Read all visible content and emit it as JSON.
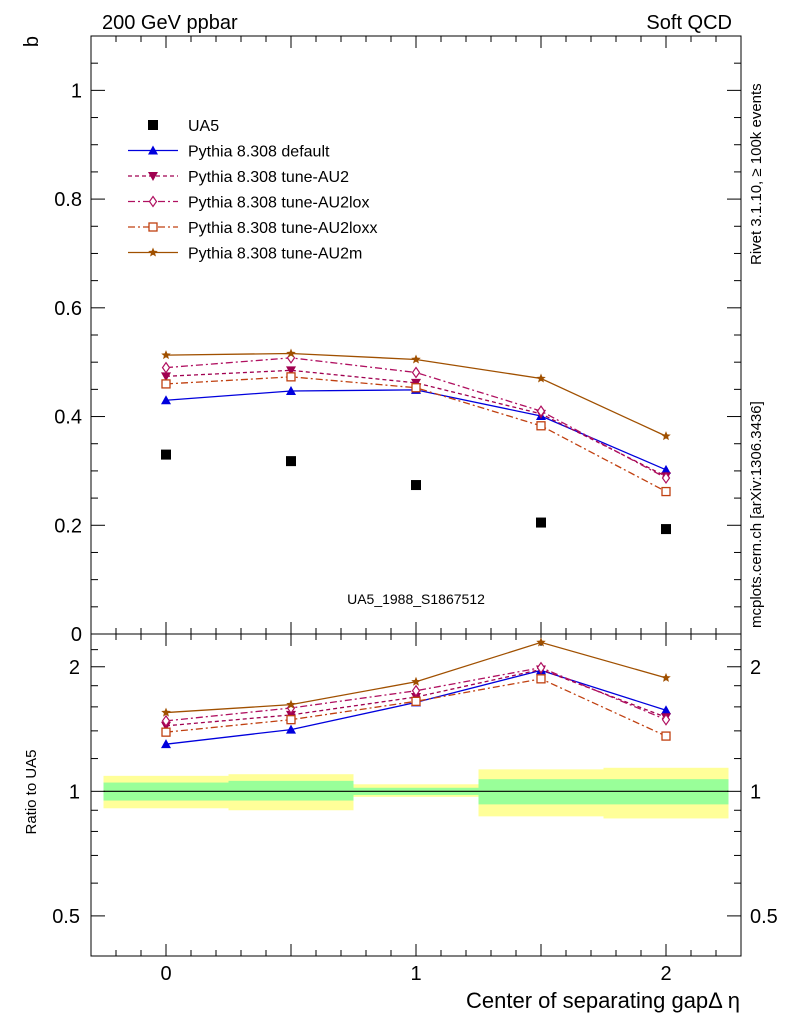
{
  "header": {
    "left": "200 GeV ppbar",
    "right": "Soft QCD"
  },
  "side_labels": {
    "rivet": "Rivet 3.1.10, ≥ 100k events",
    "mcplots": "mcplots.cern.ch [arXiv:1306.3436]"
  },
  "watermark": "UA5_1988_S1867512",
  "chart_data": [
    {
      "type": "line",
      "ylabel": "b",
      "xlabel": "Center of separating gapΔ η",
      "xlim": [
        -0.3,
        2.3
      ],
      "ylim": [
        0,
        1.1
      ],
      "yticks": [
        0,
        0.2,
        0.4,
        0.6,
        0.8,
        1
      ],
      "ytick_labels": [
        "0",
        "0.2",
        "0.4",
        "0.6",
        "0.8",
        "1"
      ],
      "x": [
        0,
        0.5,
        1,
        1.5,
        2
      ],
      "legend_position": "upper-left",
      "series": [
        {
          "name": "UA5",
          "values": [
            0.33,
            0.318,
            0.274,
            0.205,
            0.193
          ],
          "color": "#000000",
          "marker": "square",
          "line": "none"
        },
        {
          "name": "Pythia 8.308 default",
          "values": [
            0.43,
            0.447,
            0.449,
            0.401,
            0.302
          ],
          "color": "#0000dd",
          "marker": "triangle-up",
          "line": "solid"
        },
        {
          "name": "Pythia 8.308 tune-AU2",
          "values": [
            0.474,
            0.485,
            0.462,
            0.405,
            0.29
          ],
          "color": "#a00050",
          "marker": "triangle-down",
          "line": "dashed"
        },
        {
          "name": "Pythia 8.308 tune-AU2lox",
          "values": [
            0.49,
            0.508,
            0.481,
            0.41,
            0.287
          ],
          "color": "#b01060",
          "marker": "diamond-open",
          "line": "dashdot"
        },
        {
          "name": "Pythia 8.308 tune-AU2loxx",
          "values": [
            0.46,
            0.473,
            0.453,
            0.383,
            0.262
          ],
          "color": "#c04010",
          "marker": "square-open",
          "line": "dashdot"
        },
        {
          "name": "Pythia 8.308 tune-AU2m",
          "values": [
            0.513,
            0.516,
            0.505,
            0.47,
            0.364
          ],
          "color": "#a05000",
          "marker": "star",
          "line": "solid"
        }
      ]
    },
    {
      "type": "line",
      "ylabel": "Ratio to UA5",
      "xlabel": "",
      "xlim": [
        -0.3,
        2.3
      ],
      "ylim": [
        0.4,
        2.4
      ],
      "y_scale": "log",
      "yticks": [
        0.5,
        1,
        2
      ],
      "ytick_labels": [
        "0.5",
        "1",
        "2"
      ],
      "xticks": [
        0,
        1,
        2
      ],
      "xtick_labels": [
        "0",
        "1",
        "2"
      ],
      "x": [
        0,
        0.5,
        1,
        1.5,
        2
      ],
      "uncertainty_bands": [
        {
          "x_range": [
            -0.25,
            0.25
          ],
          "inner": [
            0.95,
            1.05
          ],
          "outer": [
            0.91,
            1.09
          ]
        },
        {
          "x_range": [
            0.25,
            0.75
          ],
          "inner": [
            0.95,
            1.06
          ],
          "outer": [
            0.9,
            1.1
          ]
        },
        {
          "x_range": [
            0.75,
            1.25
          ],
          "inner": [
            0.98,
            1.02
          ],
          "outer": [
            0.97,
            1.04
          ]
        },
        {
          "x_range": [
            1.25,
            1.75
          ],
          "inner": [
            0.93,
            1.07
          ],
          "outer": [
            0.87,
            1.13
          ]
        },
        {
          "x_range": [
            1.75,
            2.25
          ],
          "inner": [
            0.93,
            1.07
          ],
          "outer": [
            0.86,
            1.14
          ]
        }
      ],
      "band_colors": {
        "inner": "#99ff99",
        "outer": "#ffff99"
      },
      "series": [
        {
          "name": "Pythia 8.308 default",
          "values": [
            1.3,
            1.41,
            1.64,
            1.96,
            1.57
          ],
          "color": "#0000dd",
          "marker": "triangle-up",
          "line": "solid"
        },
        {
          "name": "Pythia 8.308 tune-AU2",
          "values": [
            1.44,
            1.53,
            1.69,
            1.97,
            1.51
          ],
          "color": "#a00050",
          "marker": "triangle-down",
          "line": "dashed"
        },
        {
          "name": "Pythia 8.308 tune-AU2lox",
          "values": [
            1.48,
            1.59,
            1.75,
            1.99,
            1.49
          ],
          "color": "#b01060",
          "marker": "diamond-open",
          "line": "dashdot"
        },
        {
          "name": "Pythia 8.308 tune-AU2loxx",
          "values": [
            1.39,
            1.49,
            1.65,
            1.87,
            1.36
          ],
          "color": "#c04010",
          "marker": "square-open",
          "line": "dashdot"
        },
        {
          "name": "Pythia 8.308 tune-AU2m",
          "values": [
            1.55,
            1.62,
            1.84,
            2.29,
            1.88
          ],
          "color": "#a05000",
          "marker": "star",
          "line": "solid"
        }
      ]
    }
  ]
}
